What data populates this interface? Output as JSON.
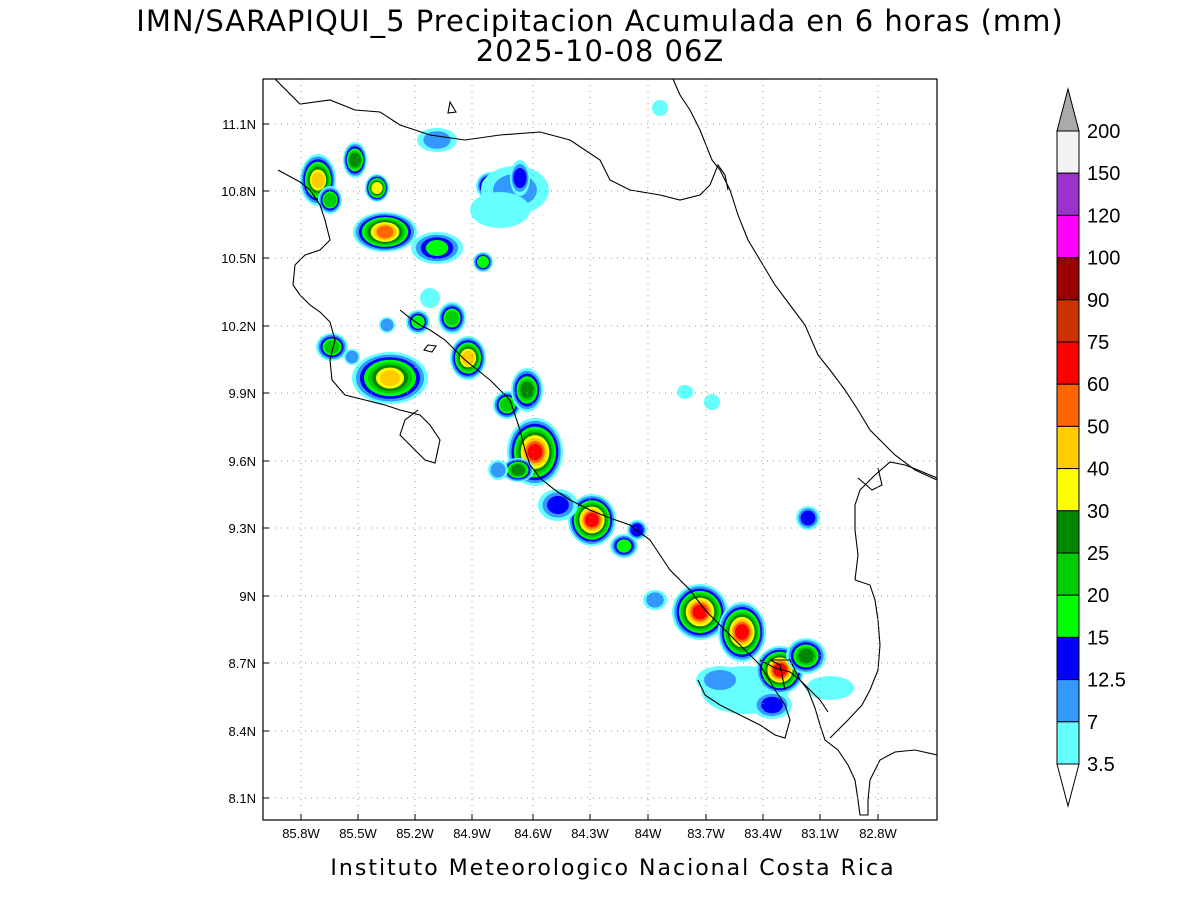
{
  "title_line1": "IMN/SARAPIQUI_5 Precipitacion Acumulada en 6 horas (mm)",
  "title_line2": "2025-10-08 06Z",
  "footer": "Instituto Meteorologico Nacional Costa Rica",
  "lat_labels": [
    "11.1N",
    "10.8N",
    "10.5N",
    "10.2N",
    "9.9N",
    "9.6N",
    "9.3N",
    "9N",
    "8.7N",
    "8.4N",
    "8.1N"
  ],
  "lon_labels": [
    "85.8W",
    "85.5W",
    "85.2W",
    "84.9W",
    "84.6W",
    "84.3W",
    "84W",
    "83.7W",
    "83.4W",
    "83.1W",
    "82.8W"
  ],
  "colorbar": {
    "labels": [
      "3.5",
      "7",
      "12.5",
      "15",
      "20",
      "25",
      "30",
      "40",
      "50",
      "60",
      "75",
      "90",
      "100",
      "120",
      "150",
      "200"
    ],
    "colors": [
      "#66ffff",
      "#3399ff",
      "#0000ff",
      "#00ff00",
      "#00cc00",
      "#008800",
      "#ffff00",
      "#ffcc00",
      "#ff6600",
      "#ff0000",
      "#cc3300",
      "#990000",
      "#ff00ff",
      "#9933cc",
      "#f2f2f2",
      "#aaaaaa"
    ]
  },
  "colors": {
    "c1": "#66ffff",
    "c2": "#3399ff",
    "c3": "#0000ff",
    "c4": "#00ff00",
    "c5": "#00cc00",
    "c6": "#008800",
    "c7": "#ffff00",
    "c8": "#ffcc00",
    "c9": "#ff6600",
    "c10": "#ff0000"
  }
}
